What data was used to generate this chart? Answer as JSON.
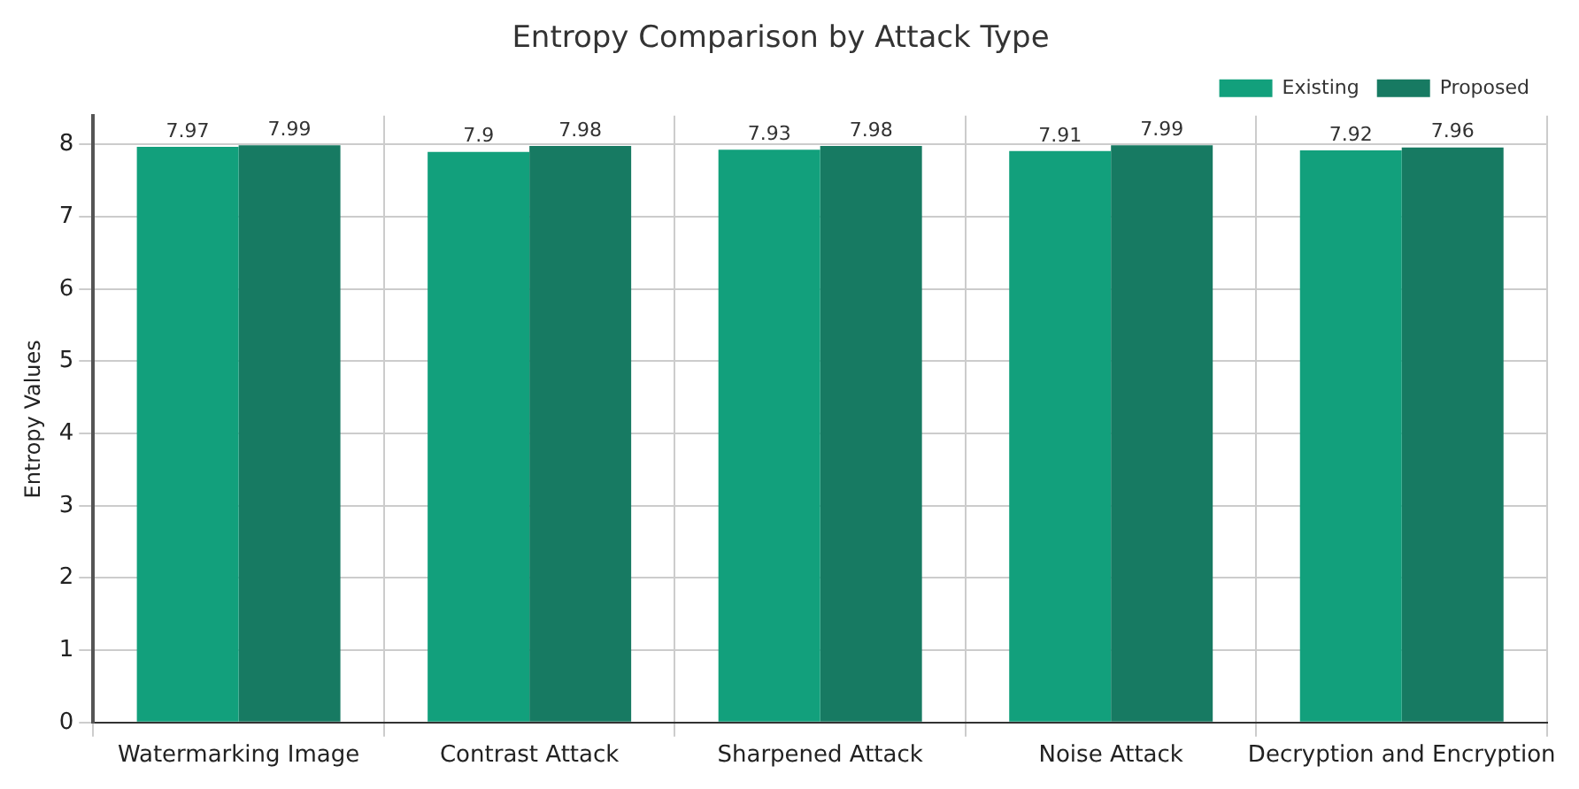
{
  "chart_data": {
    "type": "bar",
    "title": "Entropy Comparison by Attack Type",
    "ylabel": "Entropy Values",
    "categories": [
      "Watermarking Image",
      "Contrast Attack",
      "Sharpened Attack",
      "Noise Attack",
      "Decryption and Encryption"
    ],
    "series": [
      {
        "name": "Existing",
        "color": "#12a07c",
        "values": [
          7.97,
          7.9,
          7.93,
          7.91,
          7.92
        ],
        "value_labels": [
          "7.97",
          "7.9",
          "7.93",
          "7.91",
          "7.92"
        ]
      },
      {
        "name": "Proposed",
        "color": "#177a62",
        "values": [
          7.99,
          7.98,
          7.98,
          7.99,
          7.96
        ],
        "value_labels": [
          "7.99",
          "7.98",
          "7.98",
          "7.99",
          "7.96"
        ]
      }
    ],
    "ylim": [
      0,
      8.4
    ],
    "yticks": [
      0,
      1,
      2,
      3,
      4,
      5,
      6,
      7,
      8
    ],
    "grid": true,
    "legend": "top right"
  }
}
